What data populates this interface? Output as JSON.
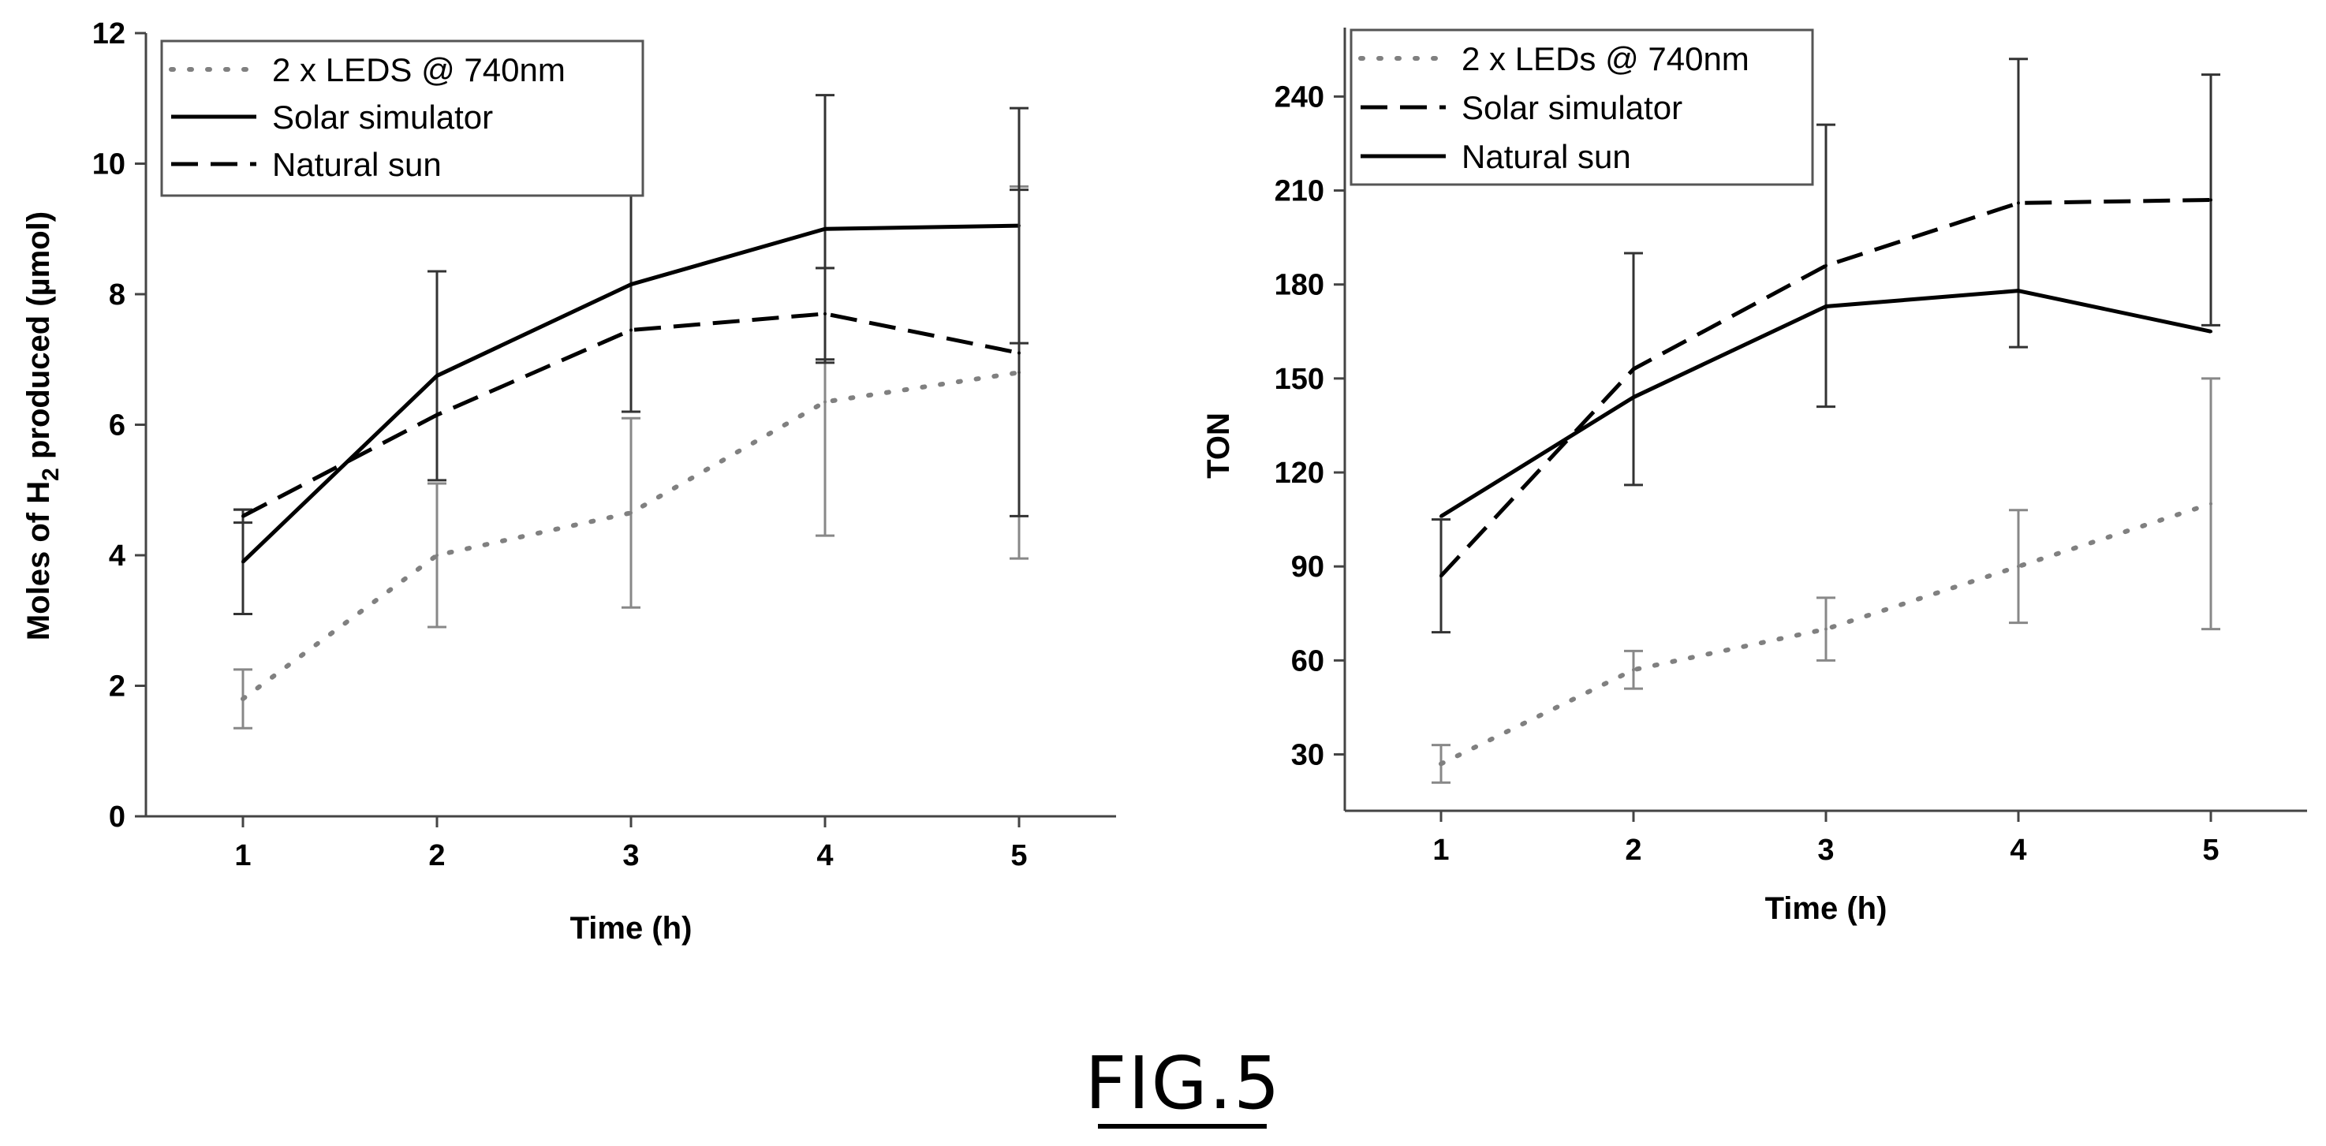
{
  "figure": {
    "caption": "FIG.5"
  },
  "chart_data": [
    {
      "type": "line",
      "ylabel": "Moles of H2 produced (µmol)",
      "ylabel_parts": [
        "Moles of H",
        "2",
        " produced (µmol)"
      ],
      "xlabel": "Time (h)",
      "x": [
        1,
        2,
        3,
        4,
        5
      ],
      "xlim": [
        0.5,
        5.5
      ],
      "ylim": [
        0,
        12
      ],
      "yticks": [
        0,
        2,
        4,
        6,
        8,
        10,
        12
      ],
      "grid": false,
      "legend": "top-left",
      "series": [
        {
          "name": "2 x LEDS @ 740nm",
          "style": "dotted",
          "color": "#808080",
          "values": [
            1.8,
            4.0,
            4.65,
            6.35,
            6.8
          ],
          "err": [
            0.45,
            1.1,
            1.45,
            2.05,
            2.85
          ]
        },
        {
          "name": "Solar simulator",
          "style": "solid",
          "color": "#000000",
          "values": [
            3.9,
            6.75,
            8.15,
            9.0,
            9.05
          ],
          "err": [
            0.8,
            1.6,
            1.95,
            2.05,
            1.8
          ]
        },
        {
          "name": "Natural sun",
          "style": "dashed",
          "color": "#000000",
          "values": [
            4.6,
            6.15,
            7.45,
            7.7,
            7.1
          ],
          "err": [
            0.1,
            0.0,
            0.0,
            0.7,
            2.5
          ]
        }
      ]
    },
    {
      "type": "line",
      "ylabel": "TON",
      "xlabel": "Time (h)",
      "x": [
        1,
        2,
        3,
        4,
        5
      ],
      "xlim": [
        0.5,
        5.5
      ],
      "ylim": [
        12,
        262
      ],
      "yticks": [
        30,
        60,
        90,
        120,
        150,
        180,
        210,
        240
      ],
      "grid": false,
      "legend": "top-left",
      "series": [
        {
          "name": "2 x LEDs @ 740nm",
          "style": "dotted",
          "color": "#808080",
          "values": [
            27,
            57,
            70,
            90,
            110
          ],
          "err": [
            6,
            6,
            10,
            18,
            40
          ]
        },
        {
          "name": "Solar simulator",
          "style": "dashed",
          "color": "#000000",
          "values": [
            87,
            153,
            186,
            206,
            207
          ],
          "err": [
            18,
            37,
            45,
            46,
            40
          ]
        },
        {
          "name": "Natural sun",
          "style": "solid",
          "color": "#000000",
          "values": [
            106,
            144,
            173,
            178,
            165
          ],
          "err": [
            0,
            0,
            0,
            0,
            0
          ]
        }
      ]
    }
  ]
}
